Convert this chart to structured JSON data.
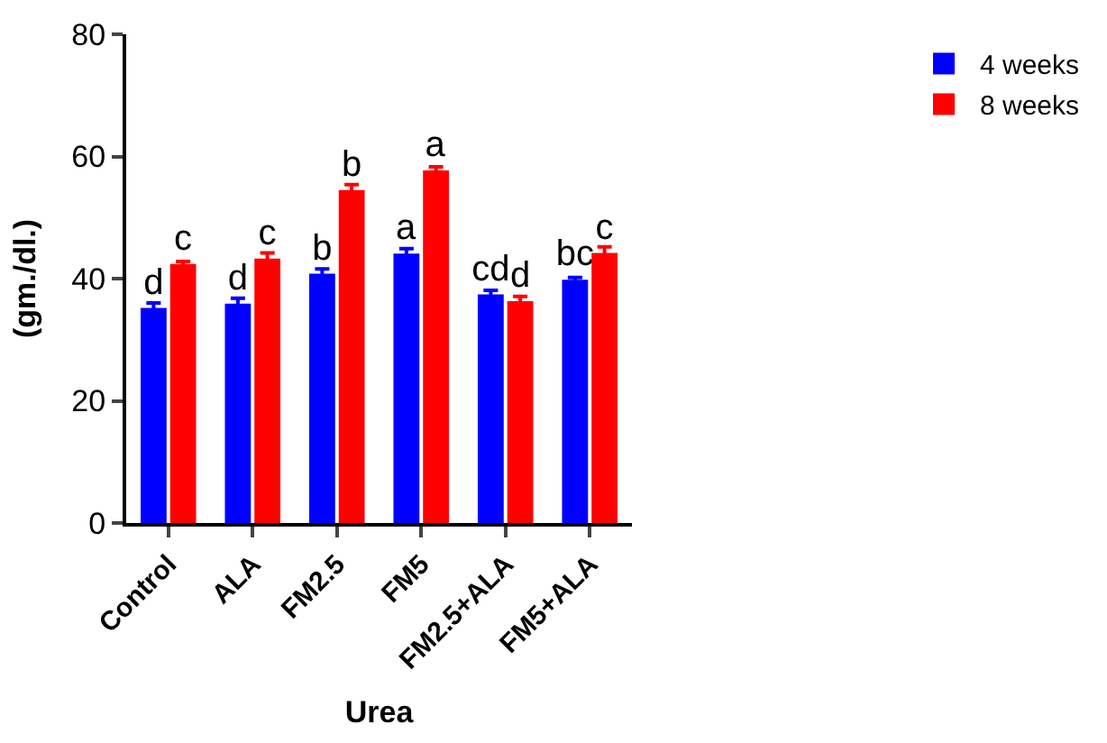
{
  "chart_data": {
    "type": "bar",
    "xlabel": "Urea",
    "ylabel": "(gm./dl.)",
    "categories": [
      "Control",
      "ALA",
      "FM2.5",
      "FM5",
      "FM2.5+ALA",
      "FM5+ALA"
    ],
    "series": [
      {
        "name": "4 weeks",
        "color": "#0000ff",
        "values": [
          35.2,
          35.9,
          40.8,
          44.1,
          37.4,
          39.8
        ],
        "errors": [
          0.8,
          0.9,
          0.8,
          0.8,
          0.7,
          0.4
        ],
        "value_labels": [
          "d",
          "d",
          "b",
          "a",
          "cd",
          "bc"
        ]
      },
      {
        "name": "8 weeks",
        "color": "#ff0000",
        "values": [
          42.4,
          43.3,
          54.5,
          57.7,
          36.3,
          44.2
        ],
        "errors": [
          0.4,
          0.9,
          0.9,
          0.6,
          0.8,
          1.0
        ],
        "value_labels": [
          "c",
          "c",
          "b",
          "a",
          "d",
          "c"
        ]
      }
    ],
    "ylim": [
      0,
      80
    ],
    "yticks": [
      0,
      20,
      40,
      60,
      80
    ],
    "legend": "top right"
  }
}
